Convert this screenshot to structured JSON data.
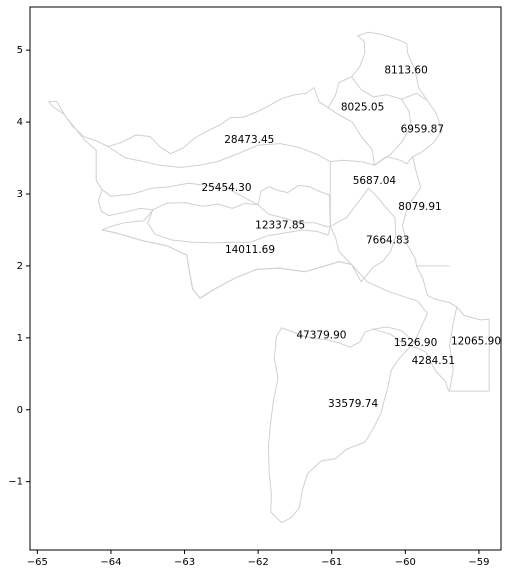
{
  "chart_data": {
    "type": "map",
    "title": "",
    "xlabel": "",
    "ylabel": "",
    "xlim": [
      -65.1,
      -58.7
    ],
    "ylim": [
      -1.95,
      5.6
    ],
    "x_ticks": [
      -65,
      -64,
      -63,
      -62,
      -61,
      -60,
      -59
    ],
    "y_ticks": [
      -1,
      0,
      1,
      2,
      3,
      4,
      5
    ],
    "grid": false,
    "boundary_color": "#d0d0d0",
    "regions": [
      {
        "label": "8113.60",
        "x": -59.99,
        "y": 4.72
      },
      {
        "label": "8025.05",
        "x": -60.58,
        "y": 4.2
      },
      {
        "label": "6959.87",
        "x": -59.77,
        "y": 3.9
      },
      {
        "label": "28473.45",
        "x": -62.12,
        "y": 3.75
      },
      {
        "label": "5687.04",
        "x": -60.42,
        "y": 3.18
      },
      {
        "label": "25454.30",
        "x": -62.43,
        "y": 3.08
      },
      {
        "label": "8079.91",
        "x": -59.8,
        "y": 2.82
      },
      {
        "label": "12337.85",
        "x": -61.7,
        "y": 2.56
      },
      {
        "label": "7664.83",
        "x": -60.24,
        "y": 2.35
      },
      {
        "label": "14011.69",
        "x": -62.11,
        "y": 2.22
      },
      {
        "label": "47379.90",
        "x": -61.14,
        "y": 1.03
      },
      {
        "label": "1526.90",
        "x": -59.86,
        "y": 0.93
      },
      {
        "label": "12065.90",
        "x": -59.04,
        "y": 0.95
      },
      {
        "label": "4284.51",
        "x": -59.62,
        "y": 0.68
      },
      {
        "label": "33579.74",
        "x": -60.71,
        "y": 0.08
      }
    ],
    "boundaries": [
      [
        [
          -64.85,
          4.28
        ],
        [
          -64.74,
          4.29
        ],
        [
          -64.63,
          4.1
        ],
        [
          -64.52,
          3.94
        ],
        [
          -64.37,
          3.8
        ],
        [
          -64.18,
          3.73
        ],
        [
          -64.04,
          3.66
        ],
        [
          -63.85,
          3.72
        ],
        [
          -63.66,
          3.82
        ],
        [
          -63.47,
          3.8
        ],
        [
          -63.33,
          3.65
        ],
        [
          -63.19,
          3.56
        ],
        [
          -63.02,
          3.64
        ],
        [
          -62.86,
          3.78
        ],
        [
          -62.7,
          3.87
        ],
        [
          -62.52,
          3.96
        ],
        [
          -62.38,
          4.06
        ],
        [
          -62.19,
          4.07
        ],
        [
          -62.0,
          4.15
        ],
        [
          -61.85,
          4.23
        ],
        [
          -61.67,
          4.33
        ],
        [
          -61.5,
          4.38
        ],
        [
          -61.35,
          4.4
        ],
        [
          -61.24,
          4.48
        ],
        [
          -61.17,
          4.28
        ],
        [
          -61.05,
          4.2
        ],
        [
          -60.95,
          4.37
        ],
        [
          -60.9,
          4.55
        ],
        [
          -60.73,
          4.63
        ],
        [
          -60.62,
          4.77
        ],
        [
          -60.55,
          4.96
        ],
        [
          -60.56,
          5.12
        ],
        [
          -60.65,
          5.2
        ],
        [
          -60.5,
          5.25
        ],
        [
          -60.33,
          5.22
        ],
        [
          -60.2,
          5.18
        ],
        [
          -60.06,
          5.13
        ],
        [
          -59.98,
          5.09
        ],
        [
          -59.97,
          4.96
        ],
        [
          -59.87,
          4.73
        ],
        [
          -59.82,
          4.48
        ],
        [
          -59.7,
          4.3
        ],
        [
          -59.58,
          4.12
        ],
        [
          -59.5,
          3.88
        ],
        [
          -59.62,
          3.71
        ],
        [
          -59.78,
          3.58
        ],
        [
          -59.9,
          3.52
        ],
        [
          -59.85,
          3.3
        ],
        [
          -59.79,
          3.09
        ],
        [
          -59.97,
          2.82
        ],
        [
          -60.04,
          2.56
        ],
        [
          -59.98,
          2.31
        ],
        [
          -59.86,
          2.09
        ],
        [
          -59.85,
          2.0
        ],
        [
          -59.76,
          1.82
        ],
        [
          -59.7,
          1.59
        ],
        [
          -59.6,
          1.54
        ],
        [
          -59.4,
          1.49
        ],
        [
          -59.3,
          1.43
        ],
        [
          -59.2,
          1.31
        ],
        [
          -58.98,
          1.25
        ],
        [
          -58.86,
          1.26
        ],
        [
          -58.86,
          0.26
        ],
        [
          -59.41,
          0.26
        ],
        [
          -59.46,
          0.4
        ],
        [
          -59.58,
          0.53
        ],
        [
          -59.65,
          0.65
        ],
        [
          -59.72,
          0.8
        ],
        [
          -59.84,
          0.86
        ],
        [
          -60.0,
          0.9
        ],
        [
          -60.2,
          1.05
        ],
        [
          -60.44,
          1.12
        ],
        [
          -60.55,
          1.08
        ],
        [
          -60.62,
          0.94
        ],
        [
          -60.75,
          0.87
        ],
        [
          -60.9,
          0.93
        ],
        [
          -61.05,
          0.97
        ],
        [
          -61.2,
          0.99
        ],
        [
          -61.37,
          1.02
        ],
        [
          -61.55,
          1.09
        ],
        [
          -61.68,
          1.14
        ],
        [
          -61.75,
          1.02
        ],
        [
          -61.78,
          0.72
        ],
        [
          -61.73,
          0.43
        ],
        [
          -61.79,
          0.14
        ],
        [
          -61.83,
          -0.17
        ],
        [
          -61.86,
          -0.52
        ],
        [
          -61.85,
          -0.88
        ],
        [
          -61.82,
          -1.18
        ],
        [
          -61.83,
          -1.42
        ],
        [
          -61.68,
          -1.57
        ],
        [
          -61.55,
          -1.5
        ],
        [
          -61.44,
          -1.36
        ],
        [
          -61.4,
          -1.12
        ],
        [
          -61.33,
          -0.89
        ],
        [
          -61.14,
          -0.71
        ],
        [
          -60.95,
          -0.68
        ],
        [
          -60.8,
          -0.55
        ],
        [
          -60.55,
          -0.45
        ],
        [
          -60.43,
          -0.25
        ],
        [
          -60.33,
          -0.05
        ],
        [
          -60.29,
          0.12
        ],
        [
          -60.24,
          0.3
        ],
        [
          -60.19,
          0.55
        ],
        [
          -60.1,
          0.69
        ],
        [
          -59.88,
          0.94
        ],
        [
          -59.8,
          1.11
        ],
        [
          -59.7,
          1.34
        ],
        [
          -59.83,
          1.51
        ],
        [
          -60.22,
          1.64
        ],
        [
          -60.52,
          1.78
        ],
        [
          -60.73,
          2.02
        ],
        [
          -60.9,
          2.06
        ],
        [
          -61.12,
          1.99
        ],
        [
          -61.36,
          1.92
        ],
        [
          -61.72,
          1.97
        ],
        [
          -62.03,
          1.95
        ],
        [
          -62.31,
          1.83
        ],
        [
          -62.57,
          1.69
        ],
        [
          -62.72,
          1.6
        ],
        [
          -62.79,
          1.55
        ],
        [
          -62.89,
          1.68
        ],
        [
          -62.93,
          1.9
        ],
        [
          -62.97,
          2.15
        ],
        [
          -63.24,
          2.28
        ],
        [
          -63.57,
          2.35
        ],
        [
          -63.94,
          2.46
        ],
        [
          -64.12,
          2.5
        ],
        [
          -64.0,
          2.55
        ],
        [
          -63.82,
          2.6
        ],
        [
          -63.55,
          2.63
        ],
        [
          -63.43,
          2.78
        ],
        [
          -63.6,
          2.8
        ],
        [
          -63.84,
          2.74
        ],
        [
          -64.03,
          2.7
        ],
        [
          -64.13,
          2.76
        ],
        [
          -64.17,
          2.9
        ],
        [
          -64.12,
          3.06
        ],
        [
          -64.2,
          3.19
        ],
        [
          -64.2,
          3.4
        ],
        [
          -64.2,
          3.61
        ],
        [
          -64.36,
          3.75
        ],
        [
          -64.5,
          3.93
        ],
        [
          -64.65,
          4.12
        ],
        [
          -64.77,
          4.2
        ],
        [
          -64.85,
          4.28
        ]
      ],
      [
        [
          -64.12,
          2.5
        ],
        [
          -63.94,
          2.46
        ],
        [
          -63.57,
          2.35
        ],
        [
          -63.24,
          2.28
        ],
        [
          -62.97,
          2.15
        ],
        [
          -62.93,
          1.9
        ],
        [
          -62.89,
          1.68
        ],
        [
          -62.79,
          1.55
        ],
        [
          -62.57,
          1.69
        ],
        [
          -62.31,
          1.83
        ],
        [
          -62.03,
          1.95
        ],
        [
          -61.72,
          1.97
        ],
        [
          -61.36,
          1.92
        ],
        [
          -61.12,
          1.99
        ],
        [
          -60.9,
          2.06
        ],
        [
          -60.73,
          2.02
        ]
      ],
      [
        [
          -63.43,
          2.78
        ],
        [
          -63.25,
          2.87
        ],
        [
          -63.0,
          2.88
        ],
        [
          -62.75,
          2.83
        ],
        [
          -62.55,
          2.86
        ],
        [
          -62.35,
          2.8
        ],
        [
          -62.18,
          2.87
        ],
        [
          -62.0,
          2.85
        ],
        [
          -61.86,
          2.72
        ],
        [
          -61.63,
          2.66
        ],
        [
          -61.45,
          2.6
        ],
        [
          -61.23,
          2.6
        ],
        [
          -61.08,
          2.55
        ],
        [
          -61.02,
          2.55
        ]
      ],
      [
        [
          -63.43,
          2.78
        ],
        [
          -63.5,
          2.6
        ],
        [
          -63.4,
          2.44
        ],
        [
          -63.17,
          2.36
        ],
        [
          -62.9,
          2.33
        ],
        [
          -62.6,
          2.32
        ],
        [
          -62.35,
          2.33
        ],
        [
          -62.1,
          2.33
        ],
        [
          -61.87,
          2.42
        ],
        [
          -61.62,
          2.46
        ],
        [
          -61.4,
          2.5
        ],
        [
          -61.2,
          2.48
        ],
        [
          -61.05,
          2.43
        ],
        [
          -61.02,
          2.55
        ]
      ],
      [
        [
          -62.0,
          2.85
        ],
        [
          -61.96,
          3.04
        ],
        [
          -61.85,
          3.1
        ],
        [
          -61.73,
          3.05
        ],
        [
          -61.6,
          3.02
        ],
        [
          -61.45,
          3.12
        ],
        [
          -61.3,
          3.1
        ],
        [
          -61.2,
          3.05
        ],
        [
          -61.03,
          2.98
        ],
        [
          -61.02,
          2.55
        ]
      ],
      [
        [
          -61.02,
          2.55
        ],
        [
          -60.95,
          2.4
        ],
        [
          -60.9,
          2.2
        ],
        [
          -60.73,
          2.02
        ]
      ],
      [
        [
          -61.02,
          2.55
        ],
        [
          -60.8,
          2.67
        ],
        [
          -60.6,
          2.94
        ],
        [
          -60.5,
          3.08
        ],
        [
          -60.4,
          2.98
        ],
        [
          -60.27,
          2.82
        ],
        [
          -60.14,
          2.67
        ],
        [
          -60.13,
          2.42
        ],
        [
          -60.2,
          2.2
        ],
        [
          -60.3,
          2.07
        ],
        [
          -60.44,
          1.98
        ],
        [
          -60.6,
          1.78
        ],
        [
          -60.73,
          2.02
        ]
      ],
      [
        [
          -61.02,
          2.55
        ],
        [
          -61.02,
          3.07
        ],
        [
          -61.02,
          3.45
        ],
        [
          -60.85,
          3.47
        ],
        [
          -60.6,
          3.45
        ],
        [
          -60.42,
          3.4
        ],
        [
          -60.26,
          3.52
        ],
        [
          -60.07,
          3.47
        ],
        [
          -59.98,
          3.42
        ],
        [
          -59.9,
          3.52
        ]
      ],
      [
        [
          -62.0,
          2.85
        ],
        [
          -62.2,
          2.96
        ],
        [
          -62.4,
          3.07
        ],
        [
          -62.7,
          3.12
        ],
        [
          -62.95,
          3.15
        ],
        [
          -63.2,
          3.1
        ],
        [
          -63.45,
          3.08
        ],
        [
          -63.7,
          3.0
        ],
        [
          -64.0,
          2.97
        ],
        [
          -64.12,
          3.06
        ]
      ],
      [
        [
          -61.02,
          3.45
        ],
        [
          -61.2,
          3.55
        ],
        [
          -61.45,
          3.65
        ],
        [
          -61.7,
          3.7
        ],
        [
          -62.0,
          3.68
        ],
        [
          -62.3,
          3.55
        ],
        [
          -62.55,
          3.45
        ],
        [
          -62.8,
          3.4
        ],
        [
          -63.05,
          3.37
        ],
        [
          -63.35,
          3.4
        ],
        [
          -63.55,
          3.45
        ],
        [
          -63.8,
          3.5
        ],
        [
          -64.04,
          3.66
        ]
      ],
      [
        [
          -60.42,
          3.4
        ],
        [
          -60.45,
          3.62
        ],
        [
          -60.6,
          3.8
        ],
        [
          -60.72,
          4.0
        ],
        [
          -60.9,
          4.1
        ],
        [
          -61.05,
          4.2
        ]
      ],
      [
        [
          -60.42,
          3.4
        ],
        [
          -60.2,
          3.55
        ],
        [
          -60.05,
          3.72
        ],
        [
          -59.92,
          3.95
        ],
        [
          -59.95,
          4.15
        ],
        [
          -60.05,
          4.32
        ],
        [
          -59.85,
          4.4
        ],
        [
          -59.7,
          4.3
        ]
      ],
      [
        [
          -60.05,
          4.32
        ],
        [
          -60.25,
          4.38
        ],
        [
          -60.43,
          4.35
        ],
        [
          -60.6,
          4.45
        ],
        [
          -60.73,
          4.63
        ]
      ],
      [
        [
          -60.44,
          1.12
        ],
        [
          -60.25,
          1.15
        ],
        [
          -60.05,
          1.1
        ],
        [
          -59.88,
          0.94
        ]
      ],
      [
        [
          -59.85,
          2.0
        ],
        [
          -59.6,
          2.0
        ],
        [
          -59.4,
          2.0
        ]
      ],
      [
        [
          -59.4,
          0.26
        ],
        [
          -59.35,
          0.55
        ],
        [
          -59.4,
          0.9
        ],
        [
          -59.35,
          1.2
        ],
        [
          -59.3,
          1.43
        ]
      ]
    ]
  }
}
